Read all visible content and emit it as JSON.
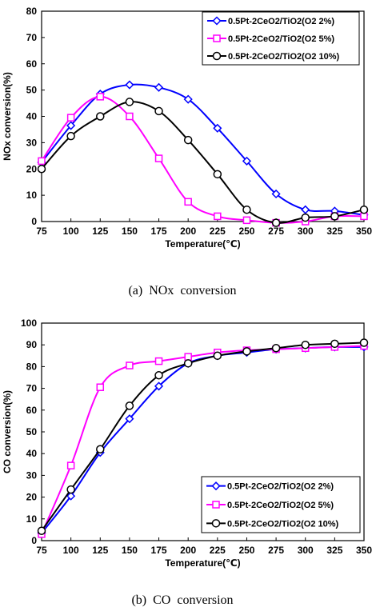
{
  "chart_data": [
    {
      "type": "line",
      "caption": "(a)  NOx  conversion",
      "xlabel": "Temperature(℃)",
      "ylabel": "NOx conversion(%)",
      "xlim": [
        75,
        350
      ],
      "ylim": [
        0,
        80
      ],
      "x": [
        75,
        100,
        125,
        150,
        175,
        200,
        225,
        250,
        275,
        300,
        325,
        350
      ],
      "xticks": [
        75,
        100,
        125,
        150,
        175,
        200,
        225,
        250,
        275,
        300,
        325,
        350
      ],
      "yticks": [
        0,
        10,
        20,
        30,
        40,
        50,
        60,
        70,
        80
      ],
      "grid": false,
      "legend_position": "top-right",
      "series": [
        {
          "name": "0.5Pt-2CeO2/TiO2(O2 2%)",
          "color": "#0000ff",
          "marker": "diamond",
          "values": [
            22.5,
            36.5,
            48.5,
            52,
            51,
            46.5,
            35.5,
            23,
            10.5,
            4.5,
            4,
            2.5
          ]
        },
        {
          "name": "0.5Pt-2CeO2/TiO2(O2 5%)",
          "color": "#ff00ff",
          "marker": "square",
          "values": [
            23,
            39.5,
            47.5,
            40,
            24,
            7.5,
            2,
            0.5,
            -0.5,
            0,
            2,
            2
          ]
        },
        {
          "name": "0.5Pt-2CeO2/TiO2(O2 10%)",
          "color": "#000000",
          "marker": "circle",
          "values": [
            20,
            32.5,
            40,
            45.5,
            42,
            31,
            18,
            4.5,
            -0.5,
            1.5,
            2,
            4.5
          ]
        }
      ]
    },
    {
      "type": "line",
      "caption": "(b)  CO  conversion",
      "xlabel": "Temperature(℃)",
      "ylabel": "CO conversion(%)",
      "xlim": [
        75,
        350
      ],
      "ylim": [
        0,
        100
      ],
      "x": [
        75,
        100,
        125,
        150,
        175,
        200,
        225,
        250,
        275,
        300,
        325,
        350
      ],
      "xticks": [
        75,
        100,
        125,
        150,
        175,
        200,
        225,
        250,
        275,
        300,
        325,
        350
      ],
      "yticks": [
        0,
        10,
        20,
        30,
        40,
        50,
        60,
        70,
        80,
        90,
        100
      ],
      "grid": false,
      "legend_position": "bottom-right",
      "series": [
        {
          "name": "0.5Pt-2CeO2/TiO2(O2 2%)",
          "color": "#0000ff",
          "marker": "diamond",
          "values": [
            3.5,
            20.5,
            40.5,
            56,
            71,
            81.5,
            85,
            86.5,
            88,
            88.5,
            89,
            89
          ]
        },
        {
          "name": "0.5Pt-2CeO2/TiO2(O2 5%)",
          "color": "#ff00ff",
          "marker": "square",
          "values": [
            3,
            34.5,
            70.5,
            80.5,
            82.5,
            84.5,
            86.5,
            87.5,
            88,
            88.5,
            89,
            89.5
          ]
        },
        {
          "name": "0.5Pt-2CeO2/TiO2(O2 10%)",
          "color": "#000000",
          "marker": "circle",
          "values": [
            4.5,
            23.5,
            42,
            62,
            76,
            81.5,
            85,
            87,
            88.5,
            90,
            90.5,
            91
          ]
        }
      ]
    }
  ]
}
